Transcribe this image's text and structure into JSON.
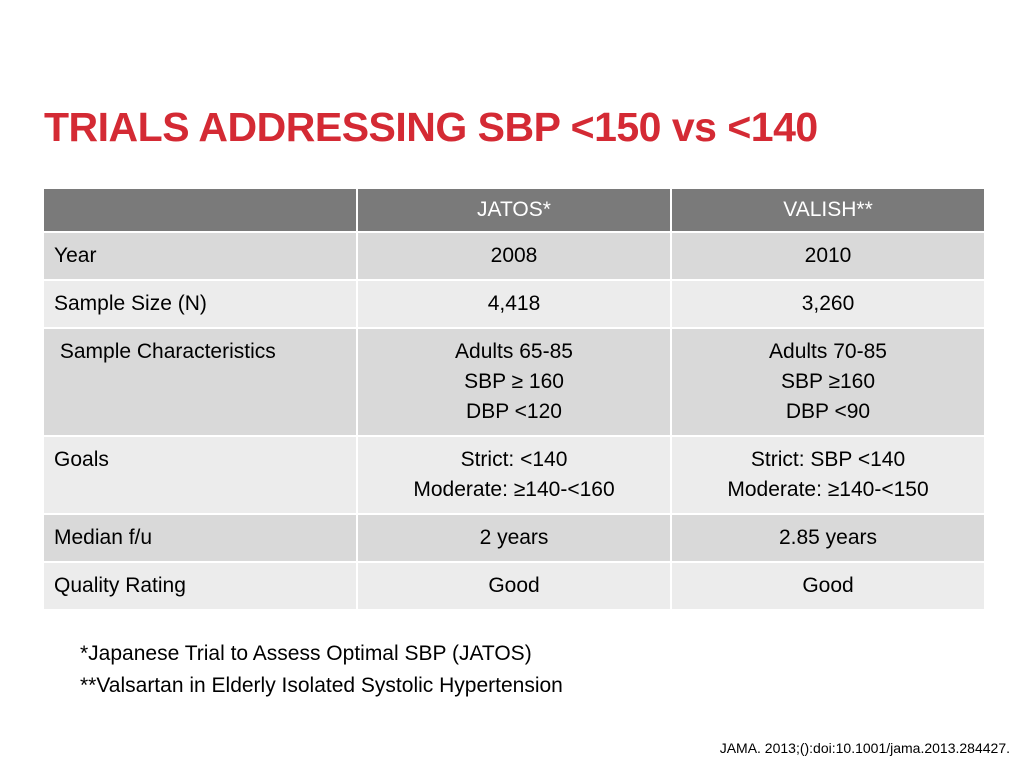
{
  "slide": {
    "title": "TRIALS ADDRESSING SBP <150 vs <140",
    "colors": {
      "title": "#d42a34",
      "header_bg": "#7a7a7a",
      "row_dark": "#d9d9d9",
      "row_light": "#ececec"
    }
  },
  "table": {
    "headers": [
      "",
      "JATOS*",
      "VALISH**"
    ],
    "rows": [
      {
        "label": "Year",
        "jatos": [
          "2008"
        ],
        "valish": [
          "2010"
        ]
      },
      {
        "label": "Sample Size (N)",
        "jatos": [
          "4,418"
        ],
        "valish": [
          "3,260"
        ]
      },
      {
        "label": " Sample Characteristics",
        "jatos": [
          "Adults 65-85",
          "SBP ≥ 160",
          "DBP <120"
        ],
        "valish": [
          "Adults 70-85",
          "SBP ≥160",
          "DBP <90"
        ]
      },
      {
        "label": "Goals",
        "jatos": [
          "Strict: <140",
          "Moderate: ≥140-<160"
        ],
        "valish": [
          "Strict: SBP <140",
          "Moderate: ≥140-<150"
        ]
      },
      {
        "label": "Median f/u",
        "jatos": [
          "2 years"
        ],
        "valish": [
          "2.85 years"
        ]
      },
      {
        "label": "Quality Rating",
        "jatos": [
          "Good"
        ],
        "valish": [
          "Good"
        ]
      }
    ]
  },
  "footnotes": [
    "*Japanese Trial to Assess Optimal SBP (JATOS)",
    "**Valsartan in Elderly Isolated Systolic Hypertension"
  ],
  "citation": "JAMA. 2013;():doi:10.1001/jama.2013.284427."
}
